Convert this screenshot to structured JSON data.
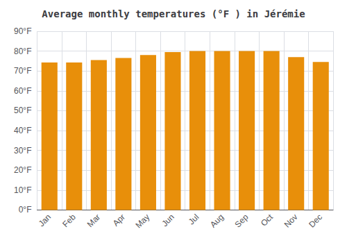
{
  "chart_data": {
    "type": "bar",
    "title": "Average monthly temperatures (°F ) in Jérémie",
    "categories": [
      "Jan",
      "Feb",
      "Mar",
      "Apr",
      "May",
      "Jun",
      "Jul",
      "Aug",
      "Sep",
      "Oct",
      "Nov",
      "Dec"
    ],
    "values": [
      74.3,
      74.3,
      75.5,
      76.5,
      78.0,
      79.5,
      80.0,
      80.0,
      80.0,
      80.0,
      77.0,
      74.5
    ],
    "color": "#E88F0A",
    "ylim": [
      0,
      90
    ],
    "yticks": [
      {
        "value": 0,
        "label": "0°F"
      },
      {
        "value": 10,
        "label": "10°F"
      },
      {
        "value": 20,
        "label": "20°F"
      },
      {
        "value": 30,
        "label": "30°F"
      },
      {
        "value": 40,
        "label": "40°F"
      },
      {
        "value": 50,
        "label": "50°F"
      },
      {
        "value": 60,
        "label": "60°F"
      },
      {
        "value": 70,
        "label": "70°F"
      },
      {
        "value": 80,
        "label": "80°F"
      },
      {
        "value": 90,
        "label": "90°F"
      }
    ],
    "grid": true
  }
}
